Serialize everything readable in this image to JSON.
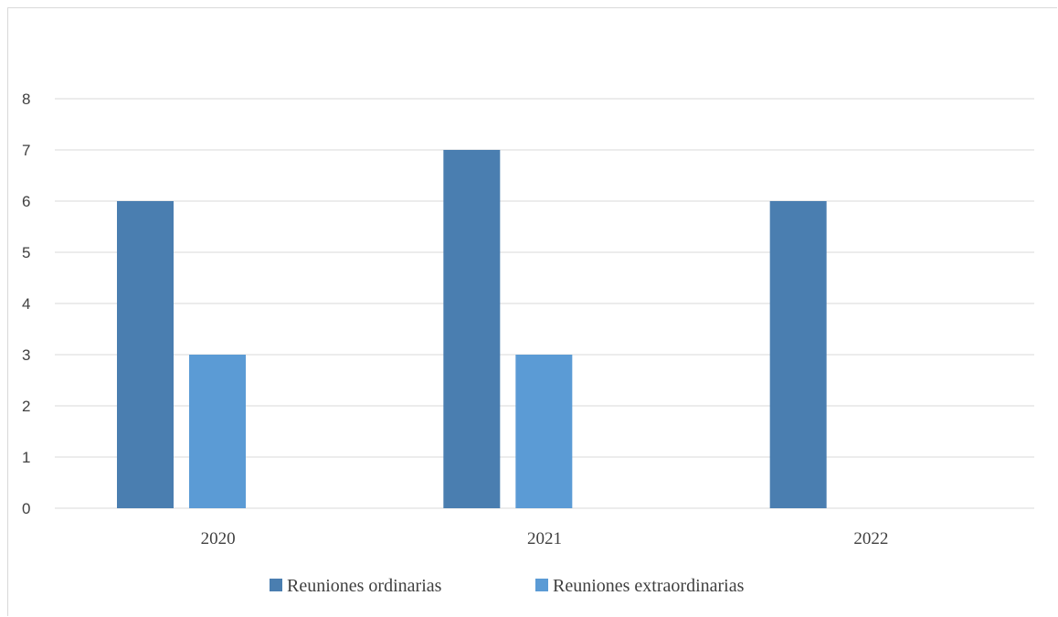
{
  "chart_data": {
    "type": "bar",
    "categories": [
      "2020",
      "2021",
      "2022"
    ],
    "series": [
      {
        "name": "Reuniones ordinarias",
        "values": [
          6,
          7,
          6
        ],
        "color": "#4a7eb0"
      },
      {
        "name": "Reuniones extraordinarias",
        "values": [
          3,
          3,
          0
        ],
        "color": "#5b9bd5"
      }
    ],
    "yticks": [
      "0",
      "1",
      "2",
      "3",
      "4",
      "5",
      "6",
      "7",
      "8"
    ],
    "ylim": [
      0,
      8
    ],
    "grid": true,
    "legend": "bottom-center",
    "gridline_color": "#d9d9d9",
    "text_color": "#404040"
  }
}
